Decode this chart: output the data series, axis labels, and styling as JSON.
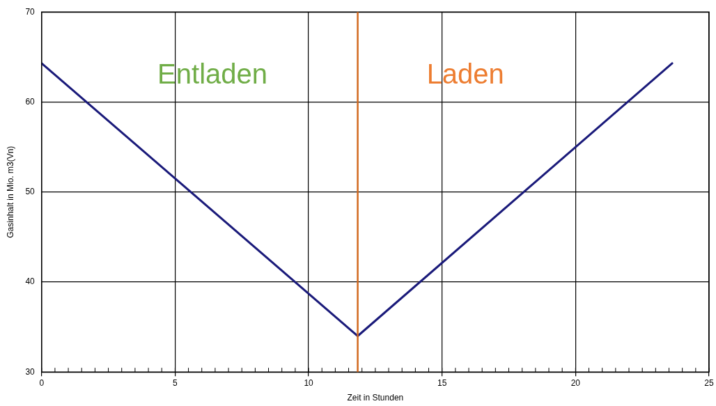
{
  "chart_data": {
    "type": "line",
    "xlabel": "Zeit in Stunden",
    "ylabel": "Gasinhalt in Mio. m3(Vn)",
    "x": [
      0,
      11.84,
      23.62
    ],
    "series": [
      {
        "color": "#1a1a7a",
        "values": [
          64.3,
          34,
          64.3
        ]
      }
    ],
    "xlim": [
      0,
      25
    ],
    "xticks": [
      0,
      5,
      10,
      15,
      20,
      25
    ],
    "ylim": [
      30,
      70
    ],
    "yticks": [
      30,
      40,
      50,
      60,
      70
    ],
    "grid": true,
    "legend": false,
    "marker": "none",
    "line_style": "solid",
    "ref_lines": [
      {
        "axis": "x",
        "value": 11.84,
        "color": "#d2691e"
      }
    ],
    "annotations": [
      "Entladen",
      "Laden"
    ]
  }
}
